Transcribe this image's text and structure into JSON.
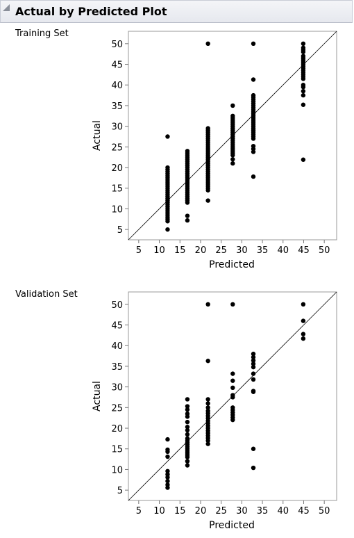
{
  "report": {
    "title": "Actual by Predicted Plot"
  },
  "chart_data": [
    {
      "type": "scatter",
      "title": "Training Set",
      "xlabel": "Predicted",
      "ylabel": "Actual",
      "xlim": [
        2.5,
        53
      ],
      "ylim": [
        2.5,
        53
      ],
      "x_ticks": [
        5,
        10,
        15,
        20,
        25,
        30,
        35,
        40,
        45,
        50
      ],
      "y_ticks": [
        5,
        10,
        15,
        20,
        25,
        30,
        35,
        40,
        45,
        50
      ],
      "reference_line": "y = x",
      "grid": false,
      "points": [
        {
          "x": 12.0,
          "y": [
            5.0,
            7.0,
            7.5,
            8.0,
            8.5,
            9.0,
            9.5,
            10.0,
            10.5,
            11.0,
            11.5,
            12.0,
            12.5,
            13.0,
            13.5,
            14.0,
            14.5,
            15.0,
            15.5,
            16.0,
            16.5,
            17.0,
            17.5,
            18.0,
            18.5,
            19.0,
            19.5,
            20.0,
            27.5
          ]
        },
        {
          "x": 16.8,
          "y": [
            7.2,
            8.3,
            11.5,
            12.0,
            12.5,
            13.0,
            13.5,
            14.0,
            14.5,
            15.0,
            15.5,
            16.0,
            16.5,
            17.0,
            17.5,
            18.0,
            18.5,
            19.0,
            19.5,
            20.0,
            20.5,
            21.0,
            21.5,
            22.0,
            22.5,
            23.0,
            23.5,
            24.0
          ]
        },
        {
          "x": 21.8,
          "y": [
            12.0,
            14.5,
            15.0,
            15.5,
            16.0,
            16.5,
            17.0,
            17.5,
            18.0,
            18.5,
            19.0,
            19.5,
            20.0,
            20.5,
            21.0,
            21.5,
            22.0,
            22.5,
            23.0,
            23.5,
            24.0,
            24.5,
            25.0,
            25.5,
            26.0,
            26.5,
            27.0,
            27.5,
            28.0,
            28.5,
            29.0,
            29.5,
            50.0
          ]
        },
        {
          "x": 27.8,
          "y": [
            21.0,
            22.0,
            23.0,
            23.5,
            24.0,
            24.5,
            25.0,
            25.5,
            26.0,
            26.5,
            27.0,
            27.5,
            28.0,
            28.5,
            29.0,
            29.5,
            30.0,
            30.5,
            31.0,
            31.5,
            32.0,
            32.5,
            35.0
          ]
        },
        {
          "x": 32.8,
          "y": [
            17.8,
            23.8,
            24.5,
            25.2,
            27.0,
            27.5,
            28.0,
            28.5,
            29.0,
            29.5,
            30.0,
            30.5,
            31.0,
            31.5,
            32.0,
            32.5,
            33.0,
            33.5,
            34.0,
            34.5,
            35.0,
            35.5,
            36.0,
            36.5,
            37.0,
            37.5,
            41.3,
            50.0
          ]
        },
        {
          "x": 44.9,
          "y": [
            21.9,
            35.2,
            37.5,
            38.5,
            39.5,
            40.0,
            41.5,
            42.0,
            42.5,
            43.0,
            43.5,
            44.0,
            44.5,
            45.0,
            45.5,
            46.0,
            46.5,
            47.0,
            48.0,
            48.5,
            49.0,
            50.0
          ]
        }
      ]
    },
    {
      "type": "scatter",
      "title": "Validation Set",
      "xlabel": "Predicted",
      "ylabel": "Actual",
      "xlim": [
        2.5,
        53
      ],
      "ylim": [
        2.5,
        53
      ],
      "x_ticks": [
        5,
        10,
        15,
        20,
        25,
        30,
        35,
        40,
        45,
        50
      ],
      "y_ticks": [
        5,
        10,
        15,
        20,
        25,
        30,
        35,
        40,
        45,
        50
      ],
      "reference_line": "y = x",
      "grid": false,
      "points": [
        {
          "x": 12.0,
          "y": [
            5.6,
            6.3,
            7.2,
            8.1,
            8.8,
            9.6,
            13.1,
            14.3,
            14.8,
            17.3
          ]
        },
        {
          "x": 16.8,
          "y": [
            11.0,
            12.0,
            13.0,
            13.5,
            14.0,
            14.5,
            15.0,
            15.5,
            16.0,
            16.5,
            17.0,
            17.5,
            18.5,
            19.5,
            20.3,
            21.5,
            22.8,
            23.5,
            24.5,
            25.3,
            27.0
          ]
        },
        {
          "x": 21.8,
          "y": [
            16.2,
            17.0,
            17.6,
            18.2,
            18.8,
            19.4,
            20.0,
            20.6,
            21.2,
            21.8,
            22.4,
            23.0,
            23.6,
            24.2,
            25.0,
            26.0,
            27.0,
            36.3,
            50.0
          ]
        },
        {
          "x": 27.8,
          "y": [
            22.0,
            22.6,
            23.2,
            23.8,
            24.4,
            25.0,
            27.5,
            28.0,
            29.8,
            31.5,
            33.2,
            50.0
          ]
        },
        {
          "x": 32.8,
          "y": [
            10.4,
            15.0,
            28.8,
            29.0,
            31.8,
            33.2,
            34.8,
            35.6,
            36.4,
            37.2,
            38.0
          ]
        },
        {
          "x": 44.9,
          "y": [
            41.7,
            42.8,
            46.0,
            50.0
          ]
        }
      ]
    }
  ]
}
